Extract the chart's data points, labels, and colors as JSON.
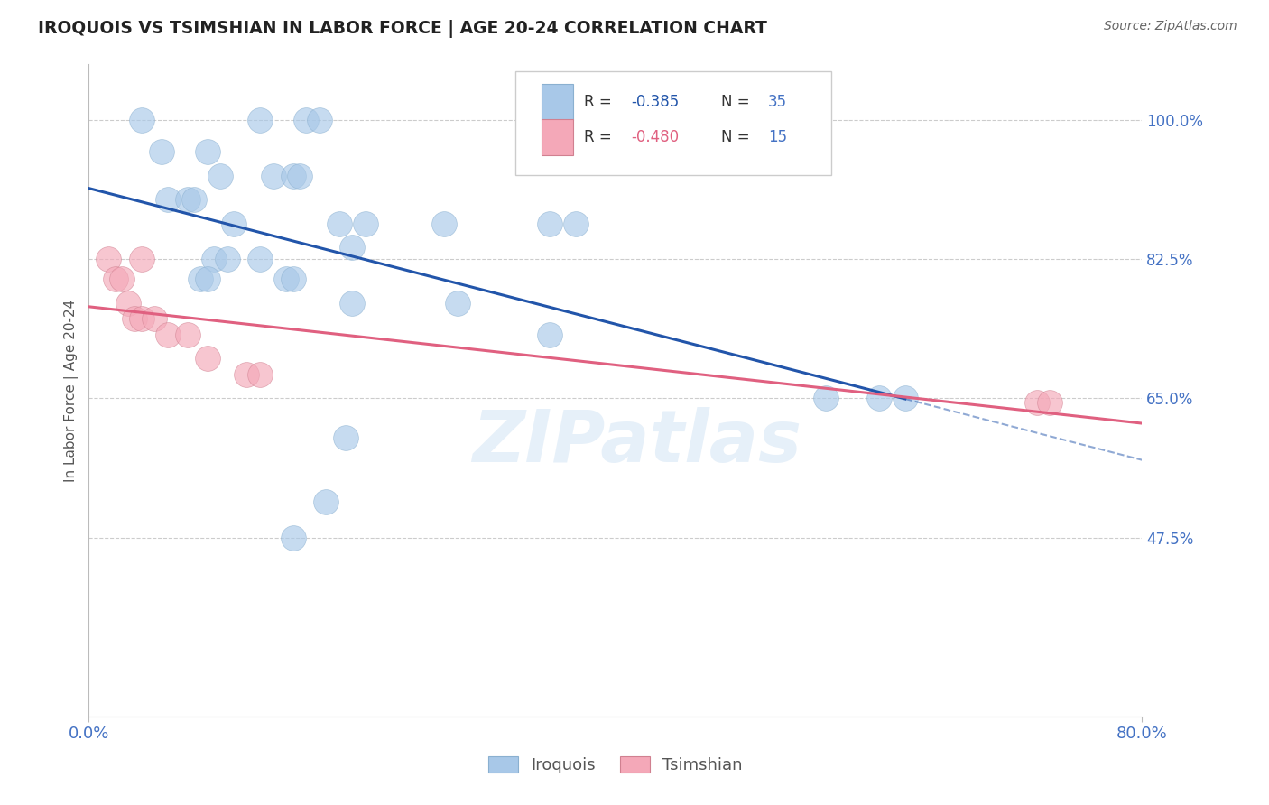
{
  "title": "IROQUOIS VS TSIMSHIAN IN LABOR FORCE | AGE 20-24 CORRELATION CHART",
  "source": "Source: ZipAtlas.com",
  "ylabel": "In Labor Force | Age 20-24",
  "ytick_labels": [
    "100.0%",
    "82.5%",
    "65.0%",
    "47.5%"
  ],
  "ytick_values": [
    1.0,
    0.825,
    0.65,
    0.475
  ],
  "xlim": [
    0.0,
    0.8
  ],
  "ylim": [
    0.25,
    1.07
  ],
  "watermark": "ZIPatlas",
  "legend_iroquois": "Iroquois",
  "legend_tsimshian": "Tsimshian",
  "iroquois_x": [
    0.04,
    0.13,
    0.165,
    0.175,
    0.055,
    0.09,
    0.1,
    0.14,
    0.155,
    0.16,
    0.06,
    0.075,
    0.08,
    0.11,
    0.19,
    0.21,
    0.27,
    0.35,
    0.37,
    0.2,
    0.13,
    0.095,
    0.105,
    0.085,
    0.09,
    0.15,
    0.155,
    0.2,
    0.28,
    0.35,
    0.56,
    0.6,
    0.62,
    0.195,
    0.18,
    0.155
  ],
  "iroquois_y": [
    1.0,
    1.0,
    1.0,
    1.0,
    0.96,
    0.96,
    0.93,
    0.93,
    0.93,
    0.93,
    0.9,
    0.9,
    0.9,
    0.87,
    0.87,
    0.87,
    0.87,
    0.87,
    0.87,
    0.84,
    0.825,
    0.825,
    0.825,
    0.8,
    0.8,
    0.8,
    0.8,
    0.77,
    0.77,
    0.73,
    0.65,
    0.65,
    0.65,
    0.6,
    0.52,
    0.475
  ],
  "tsimshian_x": [
    0.015,
    0.04,
    0.02,
    0.025,
    0.03,
    0.035,
    0.04,
    0.05,
    0.06,
    0.075,
    0.09,
    0.12,
    0.13,
    0.72,
    0.73
  ],
  "tsimshian_y": [
    0.825,
    0.825,
    0.8,
    0.8,
    0.77,
    0.75,
    0.75,
    0.75,
    0.73,
    0.73,
    0.7,
    0.68,
    0.68,
    0.645,
    0.645
  ],
  "iroquois_color": "#a8c8e8",
  "tsimshian_color": "#f4a8b8",
  "iroquois_line_color": "#2255aa",
  "tsimshian_line_color": "#e06080",
  "background_color": "#ffffff",
  "grid_color": "#cccccc",
  "title_color": "#222222",
  "tick_color": "#4472c4"
}
